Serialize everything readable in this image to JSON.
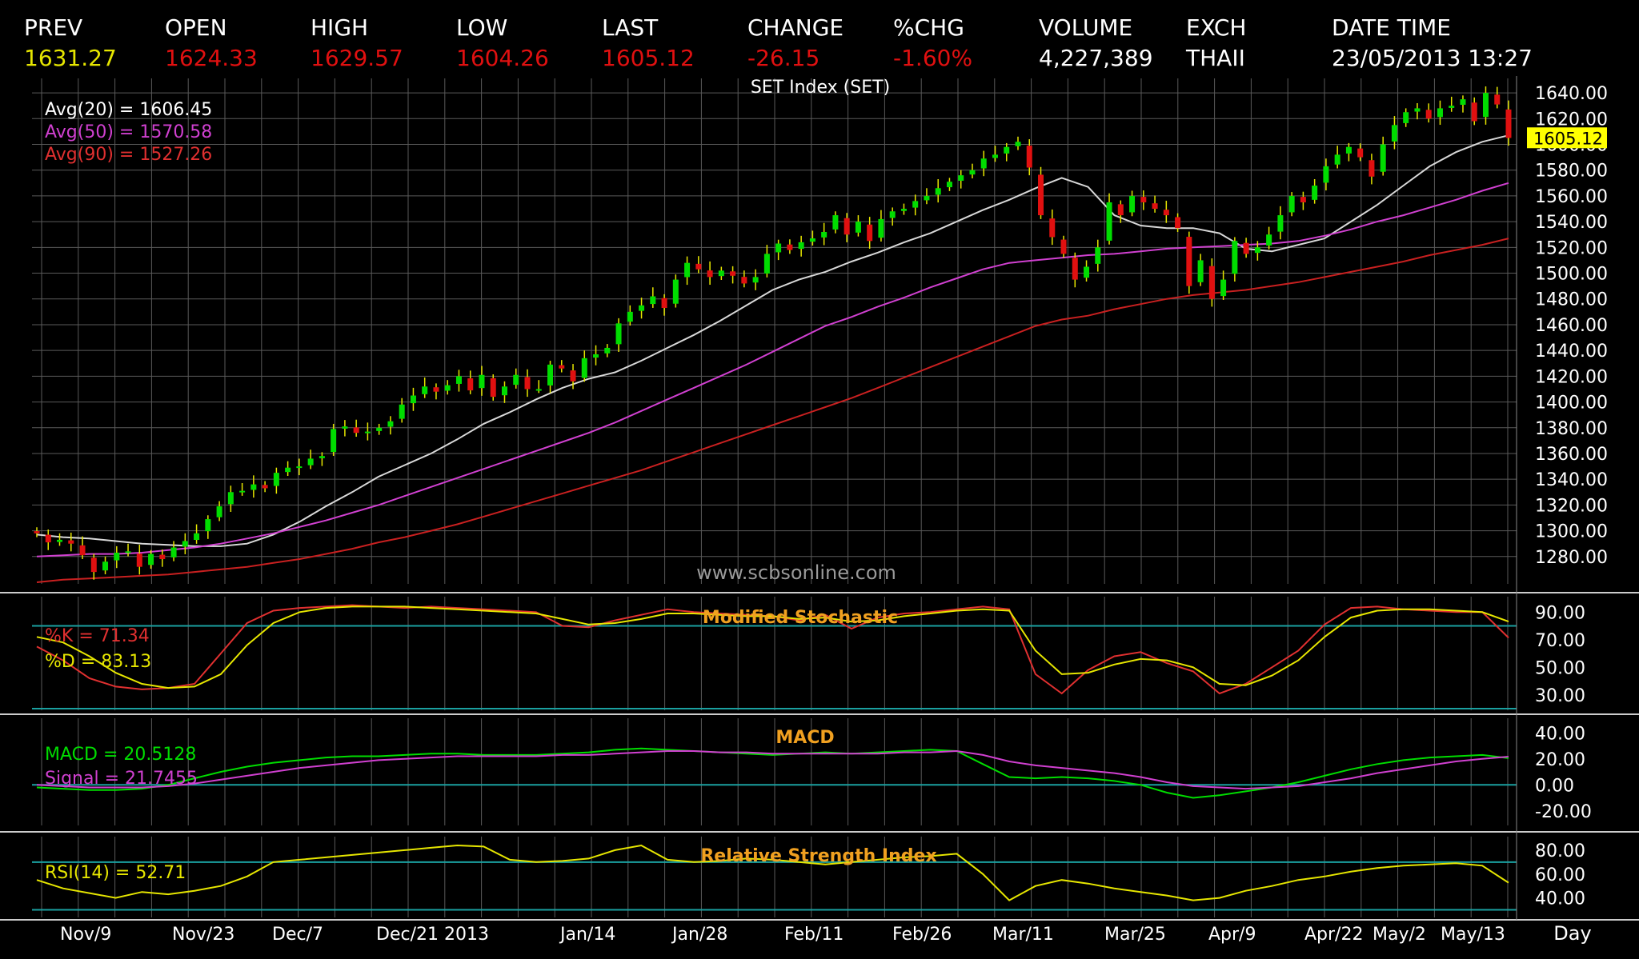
{
  "header": {
    "fields": [
      {
        "label": "PREV",
        "value": "1631.27",
        "color": "#e6e600"
      },
      {
        "label": "OPEN",
        "value": "1624.33",
        "color": "#e01010"
      },
      {
        "label": "HIGH",
        "value": "1629.57",
        "color": "#e01010"
      },
      {
        "label": "LOW",
        "value": "1604.26",
        "color": "#e01010"
      },
      {
        "label": "LAST",
        "value": "1605.12",
        "color": "#e01010"
      },
      {
        "label": "CHANGE",
        "value": "-26.15",
        "color": "#e01010"
      },
      {
        "label": "%CHG",
        "value": "-1.60%",
        "color": "#e01010"
      },
      {
        "label": "VOLUME",
        "value": "4,227,389",
        "color": "#ffffff"
      },
      {
        "label": "EXCH",
        "value": "THAII",
        "color": "#ffffff"
      },
      {
        "label": "DATE TIME",
        "value": "23/05/2013 13:27",
        "color": "#ffffff"
      }
    ]
  },
  "watermark": "www.scbsonline.com",
  "colors": {
    "up": "#00dd00",
    "down": "#e01010",
    "ma20": "#d8d8d8",
    "ma50": "#d040d0",
    "ma90": "#c82020",
    "grid": "#5a5a5a",
    "ref": "#1aa0a0",
    "title": "#f0a020",
    "last_tag": "#ffff00"
  },
  "x_axis": {
    "labels": [
      "Nov/9",
      "Nov/23",
      "Dec/7",
      "Dec/21",
      "2013",
      "Jan/14",
      "Jan/28",
      "Feb/11",
      "Feb/26",
      "Mar/11",
      "Mar/25",
      "Apr/9",
      "Apr/22",
      "May/2",
      "May/13"
    ],
    "unit_label": "Day"
  },
  "chart_data": [
    {
      "type": "candlestick",
      "title": "SET Index (SET)",
      "ylim": [
        1260,
        1650
      ],
      "yticks": [
        "1640.00",
        "1620.00",
        "1600.00",
        "1580.00",
        "1560.00",
        "1540.00",
        "1520.00",
        "1500.00",
        "1480.00",
        "1460.00",
        "1440.00",
        "1420.00",
        "1400.00",
        "1380.00",
        "1360.00",
        "1340.00",
        "1320.00",
        "1300.00",
        "1280.00"
      ],
      "last_value": "1605.12",
      "legend": [
        {
          "label": "Avg(20)",
          "value": "1606.45",
          "color": "#ffffff"
        },
        {
          "label": "Avg(50)",
          "value": "1570.58",
          "color": "#d040d0"
        },
        {
          "label": "Avg(90)",
          "value": "1527.26",
          "color": "#e03030"
        }
      ],
      "close": [
        1298,
        1291,
        1293,
        1290,
        1281,
        1268,
        1276,
        1283,
        1284,
        1272,
        1282,
        1278,
        1287,
        1292,
        1298,
        1309,
        1319,
        1330,
        1331,
        1336,
        1333,
        1345,
        1349,
        1350,
        1356,
        1358,
        1379,
        1381,
        1376,
        1377,
        1380,
        1385,
        1398,
        1405,
        1412,
        1408,
        1413,
        1420,
        1409,
        1421,
        1404,
        1412,
        1421,
        1410,
        1410,
        1429,
        1426,
        1416,
        1434,
        1437,
        1442,
        1461,
        1470,
        1475,
        1482,
        1473,
        1495,
        1508,
        1503,
        1497,
        1502,
        1498,
        1492,
        1497,
        1515,
        1523,
        1518,
        1524,
        1527,
        1532,
        1545,
        1530,
        1540,
        1525,
        1542,
        1548,
        1550,
        1556,
        1560,
        1566,
        1571,
        1576,
        1580,
        1589,
        1592,
        1598,
        1602,
        1582,
        1545,
        1528,
        1515,
        1495,
        1505,
        1520,
        1555,
        1545,
        1560,
        1555,
        1550,
        1545,
        1535,
        1490,
        1510,
        1480,
        1495,
        1525,
        1515,
        1520,
        1530,
        1545,
        1560,
        1555,
        1568,
        1583,
        1592,
        1598,
        1590,
        1575,
        1600,
        1615,
        1625,
        1628,
        1620,
        1628,
        1630,
        1635,
        1618,
        1640,
        1631,
        1605
      ],
      "ma20": [
        1297,
        1295,
        1294,
        1292,
        1290,
        1289,
        1288,
        1288,
        1290,
        1297,
        1307,
        1319,
        1330,
        1342,
        1351,
        1360,
        1371,
        1383,
        1392,
        1402,
        1411,
        1418,
        1423,
        1432,
        1442,
        1452,
        1463,
        1475,
        1487,
        1495,
        1501,
        1509,
        1516,
        1524,
        1531,
        1540,
        1549,
        1557,
        1566,
        1574,
        1567,
        1545,
        1537,
        1535,
        1535,
        1531,
        1519,
        1517,
        1522,
        1527,
        1540,
        1553,
        1568,
        1583,
        1594,
        1602,
        1607
      ],
      "ma50": [
        1280,
        1281,
        1282,
        1282,
        1283,
        1285,
        1287,
        1290,
        1294,
        1298,
        1303,
        1308,
        1314,
        1320,
        1327,
        1334,
        1341,
        1348,
        1355,
        1362,
        1369,
        1376,
        1384,
        1393,
        1402,
        1411,
        1420,
        1429,
        1439,
        1449,
        1459,
        1466,
        1474,
        1481,
        1489,
        1496,
        1503,
        1508,
        1510,
        1512,
        1514,
        1515,
        1517,
        1519,
        1520,
        1521,
        1522,
        1523,
        1525,
        1529,
        1534,
        1540,
        1545,
        1551,
        1557,
        1564,
        1570
      ],
      "ma90": [
        1260,
        1262,
        1263,
        1264,
        1265,
        1266,
        1268,
        1270,
        1272,
        1275,
        1278,
        1282,
        1286,
        1291,
        1295,
        1300,
        1305,
        1311,
        1317,
        1323,
        1329,
        1335,
        1341,
        1347,
        1354,
        1361,
        1368,
        1375,
        1382,
        1389,
        1396,
        1403,
        1411,
        1419,
        1427,
        1435,
        1443,
        1451,
        1459,
        1464,
        1467,
        1472,
        1476,
        1480,
        1483,
        1485,
        1487,
        1490,
        1493,
        1497,
        1501,
        1505,
        1509,
        1514,
        1518,
        1522,
        1527
      ]
    },
    {
      "type": "line",
      "title": "Modified Stochastic",
      "ylim": [
        20,
        100
      ],
      "yticks": [
        "90.00",
        "70.00",
        "50.00",
        "30.00"
      ],
      "ref_lines": [
        80,
        20
      ],
      "legend": [
        {
          "label": "%K",
          "value": "71.34",
          "color": "#e03030"
        },
        {
          "label": "%D",
          "value": "83.13",
          "color": "#e6e600"
        }
      ],
      "series": [
        {
          "name": "%K",
          "values": [
            65,
            55,
            42,
            36,
            34,
            35,
            38,
            60,
            82,
            91,
            93,
            94,
            95,
            94,
            93,
            94,
            93,
            92,
            91,
            90,
            80,
            79,
            84,
            88,
            92,
            90,
            89,
            88,
            87,
            84,
            88,
            78,
            86,
            89,
            90,
            92,
            94,
            92,
            45,
            31,
            48,
            58,
            61,
            53,
            47,
            31,
            38,
            50,
            62,
            81,
            93,
            94,
            92,
            91,
            90,
            90,
            71.34
          ]
        },
        {
          "name": "%D",
          "values": [
            72,
            68,
            58,
            46,
            38,
            35,
            36,
            45,
            66,
            82,
            90,
            93,
            94,
            94,
            94,
            93,
            92,
            91,
            90,
            89,
            85,
            81,
            82,
            85,
            89,
            89,
            88,
            87,
            87,
            85,
            86,
            83,
            84,
            87,
            89,
            91,
            92,
            91,
            62,
            45,
            46,
            52,
            56,
            55,
            50,
            38,
            37,
            44,
            55,
            72,
            86,
            91,
            92,
            92,
            91,
            90,
            83.13
          ]
        }
      ]
    },
    {
      "type": "line",
      "title": "MACD",
      "ylim": [
        -30,
        50
      ],
      "yticks": [
        "40.00",
        "20.00",
        "0.00",
        "-20.00"
      ],
      "ref_lines": [
        0
      ],
      "legend": [
        {
          "label": "MACD",
          "value": "20.5128",
          "color": "#00dd00"
        },
        {
          "label": "Signal",
          "value": "21.7455",
          "color": "#d040d0"
        }
      ],
      "series": [
        {
          "name": "MACD",
          "values": [
            -2,
            -3,
            -4,
            -4,
            -3,
            0,
            5,
            10,
            14,
            17,
            19,
            21,
            22,
            22,
            23,
            24,
            24,
            23,
            23,
            23,
            24,
            25,
            27,
            28,
            27,
            26,
            25,
            24,
            23,
            24,
            25,
            24,
            25,
            26,
            27,
            26,
            16,
            6,
            5,
            6,
            5,
            3,
            0,
            -6,
            -10,
            -8,
            -5,
            -2,
            2,
            7,
            12,
            16,
            19,
            21,
            22,
            23,
            20.5
          ]
        },
        {
          "name": "Signal",
          "values": [
            0,
            -1,
            -2,
            -2,
            -2,
            -1,
            1,
            4,
            7,
            10,
            13,
            15,
            17,
            19,
            20,
            21,
            22,
            22,
            22,
            22,
            23,
            23,
            24,
            25,
            26,
            26,
            25,
            25,
            24,
            24,
            24,
            24,
            24,
            25,
            25,
            26,
            23,
            18,
            15,
            13,
            11,
            9,
            6,
            2,
            -1,
            -2,
            -3,
            -2,
            -1,
            2,
            5,
            9,
            12,
            15,
            18,
            20,
            21.7
          ]
        }
      ]
    },
    {
      "type": "line",
      "title": "Relative Strength Index",
      "ylim": [
        25,
        90
      ],
      "yticks": [
        "80.00",
        "60.00",
        "40.00"
      ],
      "ref_lines": [
        70,
        30
      ],
      "legend": [
        {
          "label": "RSI(14)",
          "value": "52.71",
          "color": "#e6e600"
        }
      ],
      "series": [
        {
          "name": "RSI(14)",
          "values": [
            55,
            48,
            44,
            40,
            45,
            43,
            46,
            50,
            58,
            70,
            72,
            74,
            76,
            78,
            80,
            82,
            84,
            83,
            72,
            70,
            71,
            73,
            80,
            84,
            72,
            70,
            71,
            73,
            72,
            70,
            68,
            70,
            72,
            74,
            75,
            77,
            60,
            38,
            50,
            55,
            52,
            48,
            45,
            42,
            38,
            40,
            46,
            50,
            55,
            58,
            62,
            65,
            67,
            68,
            69,
            67,
            52.71
          ]
        }
      ]
    }
  ]
}
